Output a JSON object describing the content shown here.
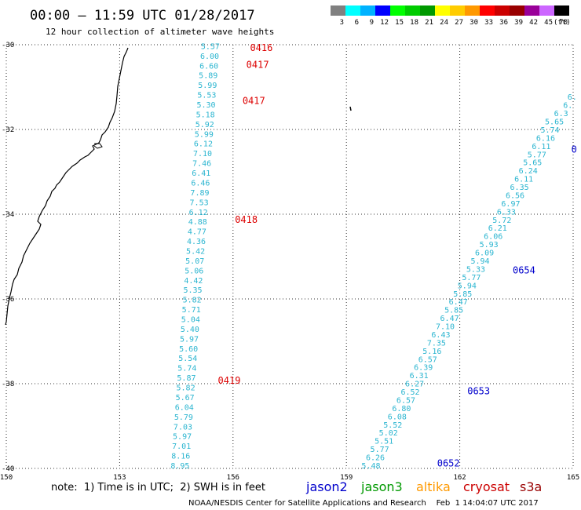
{
  "header": {
    "title": "00:00 – 11:59 UTC 01/28/2017",
    "subtitle": "12 hour collection of altimeter wave heights"
  },
  "legend": {
    "labels": [
      "3",
      "6",
      "9",
      "12",
      "15",
      "18",
      "21",
      "24",
      "27",
      "30",
      "33",
      "36",
      "39",
      "42",
      "45",
      "70"
    ],
    "unit": "(ft)",
    "colors": [
      "#808080",
      "#00ffff",
      "#00b2ff",
      "#0000ff",
      "#00ff00",
      "#00cc00",
      "#009900",
      "#ffff00",
      "#ffcc00",
      "#ff9900",
      "#ff0000",
      "#cc0000",
      "#990000",
      "#990099",
      "#cc66ff",
      "#000000"
    ]
  },
  "axes": {
    "x_ticks": [
      "150",
      "153",
      "156",
      "159",
      "162",
      "165"
    ],
    "y_ticks": [
      "-30",
      "-32",
      "-34",
      "-36",
      "-38",
      "-40"
    ],
    "x_range": [
      150,
      165
    ],
    "y_range": [
      -40,
      -30
    ]
  },
  "tracks": [
    {
      "name": "west",
      "color": "#2bb5d0",
      "x_start": 155.65,
      "y_start": -30.1,
      "x_end": 154.85,
      "y_end": -40.0,
      "swh": [
        "5.57",
        "6.00",
        "6.60",
        "5.89",
        "5.99",
        "5.53",
        "5.30",
        "5.18",
        "5.92",
        "5.99",
        "6.12",
        "7.10",
        "7.46",
        "6.41",
        "6.46",
        "7.89",
        "7.53",
        "6.12",
        "4.88",
        "4.77",
        "4.36",
        "5.42",
        "5.07",
        "5.06",
        "4.42",
        "5.35",
        "5.82",
        "5.71",
        "5.04",
        "5.40",
        "5.97",
        "5.60",
        "5.54",
        "5.74",
        "5.87",
        "5.82",
        "5.67",
        "6.04",
        "5.79",
        "7.03",
        "5.97",
        "7.01",
        "8.16",
        "8.95"
      ]
    },
    {
      "name": "east",
      "color": "#2bb5d0",
      "x_start": 165.1,
      "y_start": -31.3,
      "x_end": 159.9,
      "y_end": -40.0,
      "swh": [
        "6.",
        "6.",
        "6.3",
        "5.65",
        "5.74",
        "6.16",
        "6.11",
        "5.77",
        "5.65",
        "6.24",
        "6.11",
        "6.35",
        "6.56",
        "6.97",
        "6.33",
        "5.72",
        "6.21",
        "6.06",
        "5.93",
        "6.09",
        "5.94",
        "5.33",
        "5.77",
        "5.94",
        "5.85",
        "6.47",
        "5.85",
        "6.47",
        "7.10",
        "6.43",
        "7.35",
        "5.16",
        "6.57",
        "6.39",
        "6.31",
        "6.27",
        "6.52",
        "6.57",
        "6.80",
        "6.08",
        "5.52",
        "5.02",
        "5.51",
        "5.77",
        "6.26",
        "5.48"
      ]
    }
  ],
  "time_labels": [
    {
      "text": "0416",
      "color": "#dd0000",
      "lon": 156.45,
      "lat": -30.15
    },
    {
      "text": "0417",
      "color": "#dd0000",
      "lon": 156.35,
      "lat": -30.55
    },
    {
      "text": "0417",
      "color": "#dd0000",
      "lon": 156.25,
      "lat": -31.4
    },
    {
      "text": "0418",
      "color": "#dd0000",
      "lon": 156.05,
      "lat": -34.2
    },
    {
      "text": "0419",
      "color": "#dd0000",
      "lon": 155.6,
      "lat": -38.0
    },
    {
      "text": "0654",
      "color": "#0000cc",
      "lon": 163.4,
      "lat": -35.4
    },
    {
      "text": "0653",
      "color": "#0000cc",
      "lon": 162.2,
      "lat": -38.25
    },
    {
      "text": "0652",
      "color": "#0000cc",
      "lon": 161.4,
      "lat": -39.95
    },
    {
      "text": "0",
      "color": "#0000cc",
      "lon": 164.95,
      "lat": -32.55
    }
  ],
  "footer": {
    "note": "note:  1) Time is in UTC;  2) SWH is in feet",
    "satellites": [
      {
        "name": "jason2",
        "color": "#0000cc"
      },
      {
        "name": "jason3",
        "color": "#009900"
      },
      {
        "name": "altika",
        "color": "#ff9900"
      },
      {
        "name": "cryosat",
        "color": "#cc0000"
      },
      {
        "name": "s3a",
        "color": "#990000"
      }
    ],
    "credit": "NOAA/NESDIS Center for Satellite Applications and Research    Feb  1 14:04:07 UTC 2017"
  }
}
